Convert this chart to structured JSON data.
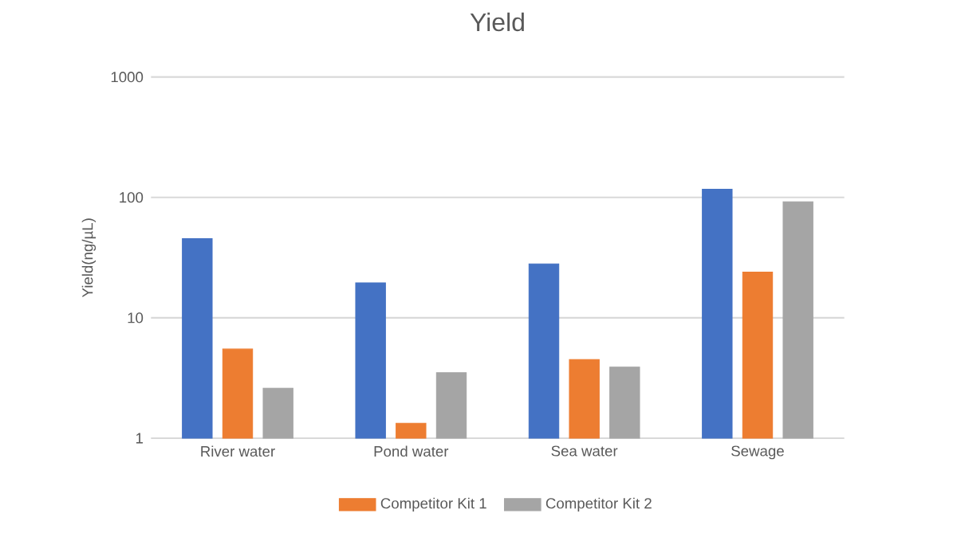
{
  "chart_data": {
    "type": "bar",
    "title": "Yield",
    "ylabel": "Yield(ng/µL)",
    "categories": [
      "River water",
      "Pond water",
      "Sea water",
      "Sewage"
    ],
    "series": [
      {
        "color": "#4472c4",
        "values": [
          45.5,
          19.5,
          28,
          117
        ]
      },
      {
        "name": "Competitor Kit 1",
        "color": "#ed7d31",
        "values": [
          5.5,
          1.33,
          4.5,
          24
        ]
      },
      {
        "name": "Competitor Kit 2",
        "color": "#a5a5a5",
        "values": [
          2.6,
          3.5,
          3.9,
          92
        ]
      }
    ],
    "log": true,
    "ylim": [
      1,
      1000
    ],
    "yticks": [
      1,
      10,
      100,
      1000
    ],
    "grid": "y",
    "legend": "bottom"
  }
}
